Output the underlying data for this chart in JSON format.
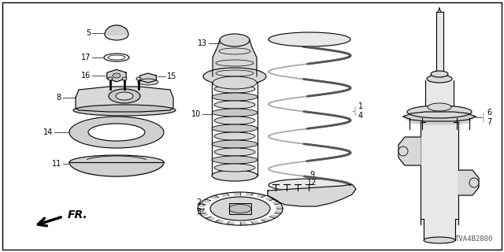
{
  "bg_color": "#ffffff",
  "border_color": "#000000",
  "line_color": "#000000",
  "diagram_code": "TVA4B2800",
  "lw": 0.8
}
